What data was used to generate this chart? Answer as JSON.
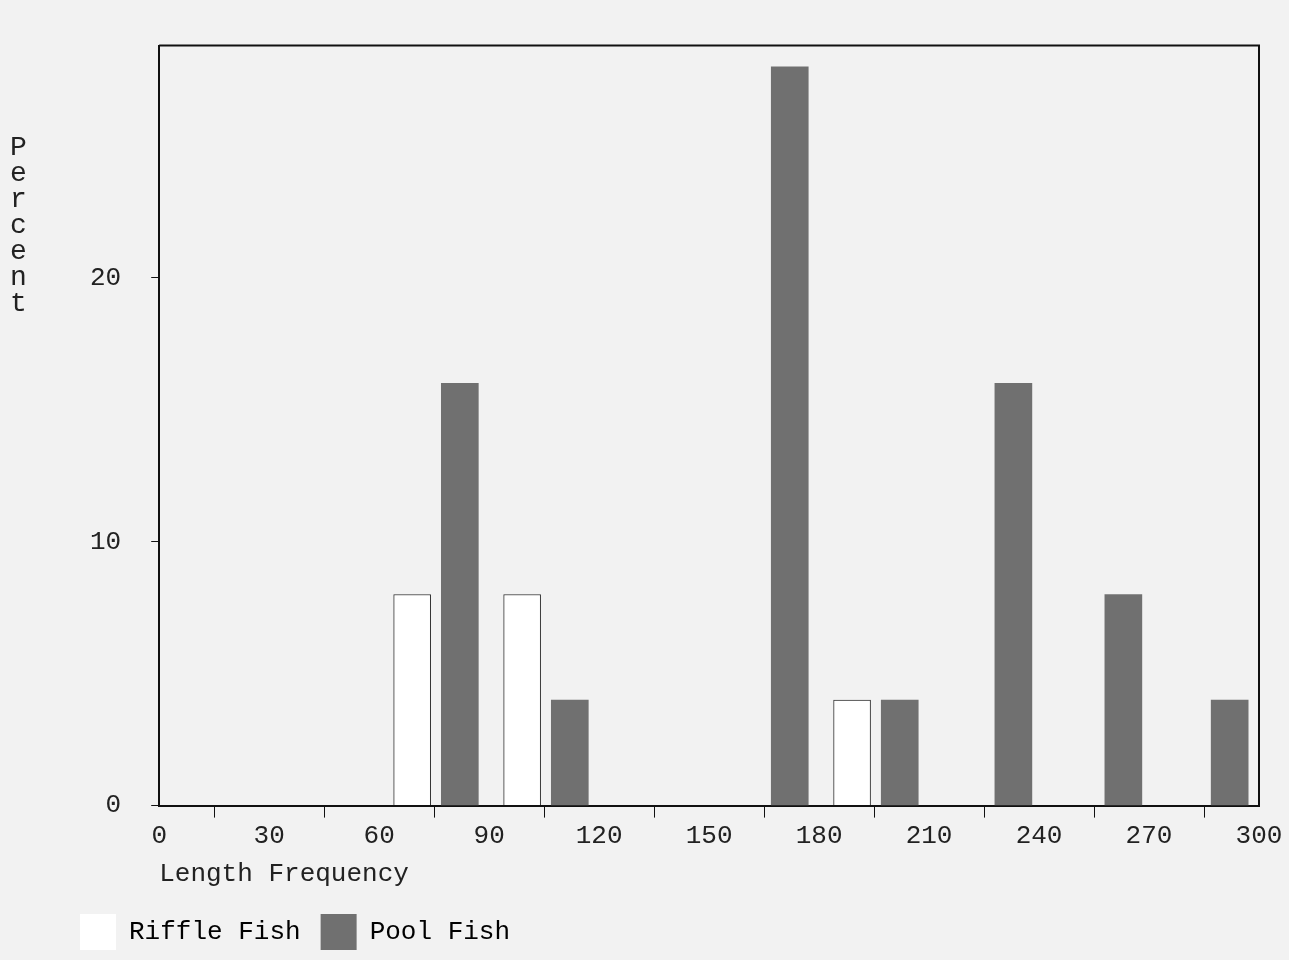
{
  "chart_data": {
    "type": "bar",
    "xlabel": "Length Frequency",
    "ylabel": "Percent",
    "xlim": [
      0,
      300
    ],
    "xticks": [
      0,
      30,
      60,
      90,
      120,
      150,
      180,
      210,
      240,
      270,
      300
    ],
    "ylim": [
      0,
      28.8
    ],
    "yticks": [
      0,
      10,
      20
    ],
    "grid": false,
    "legend": "bottom",
    "series": [
      {
        "name": "Riffle Fish",
        "color": "#ffffff",
        "x": [
          69,
          99,
          189
        ],
        "values": [
          8,
          8,
          4
        ]
      },
      {
        "name": "Pool Fish",
        "color": "#707070",
        "x": [
          82,
          112,
          172,
          202,
          233,
          263,
          292
        ],
        "values": [
          16,
          4,
          28,
          4,
          16,
          8,
          4
        ]
      }
    ]
  }
}
